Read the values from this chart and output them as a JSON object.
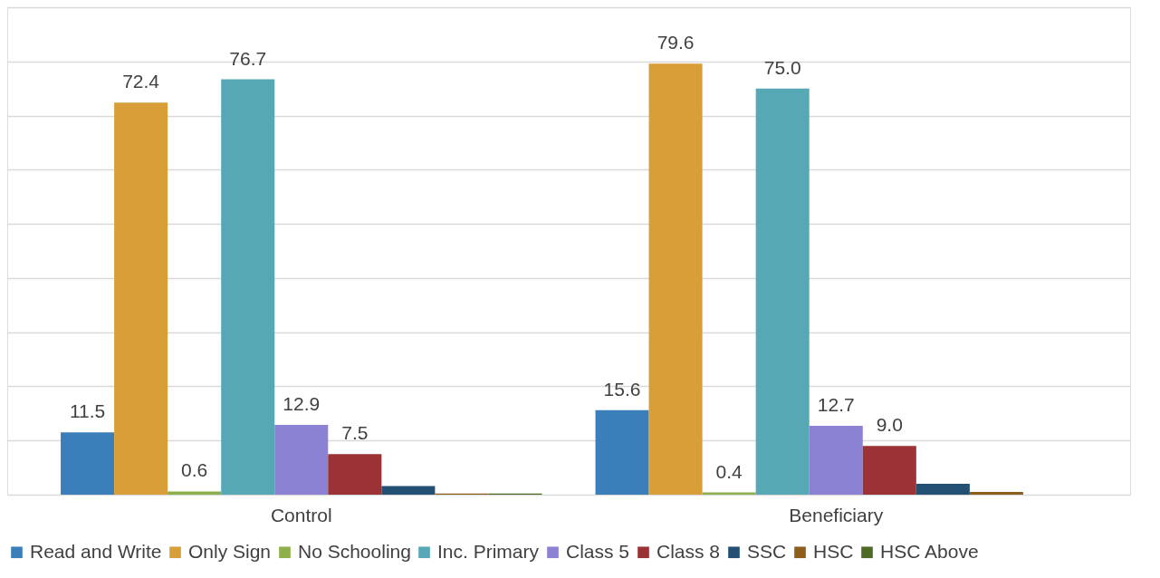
{
  "chart_data": {
    "type": "bar",
    "categories": [
      "Control",
      "Beneficiary"
    ],
    "series": [
      {
        "name": "Read and Write",
        "color": "#3a7fba",
        "values": [
          11.5,
          15.6
        ],
        "value_labels": [
          "11.5",
          "15.6"
        ]
      },
      {
        "name": "Only Sign",
        "color": "#d89f38",
        "values": [
          72.4,
          79.6
        ],
        "value_labels": [
          "72.4",
          "79.6"
        ]
      },
      {
        "name": "No Schooling",
        "color": "#8db04a",
        "values": [
          0.6,
          0.4
        ],
        "value_labels": [
          "0.6",
          "0.4"
        ]
      },
      {
        "name": "Inc. Primary",
        "color": "#57a8b5",
        "values": [
          76.7,
          75.0
        ],
        "value_labels": [
          "76.7",
          "75.0"
        ]
      },
      {
        "name": "Class 5",
        "color": "#8b82d4",
        "values": [
          12.9,
          12.7
        ],
        "value_labels": [
          "12.9",
          "12.7"
        ]
      },
      {
        "name": "Class 8",
        "color": "#9a3236",
        "values": [
          7.5,
          9.0
        ],
        "value_labels": [
          "7.5",
          "9.0"
        ]
      },
      {
        "name": "SSC",
        "color": "#234f72",
        "values": [
          1.6,
          2.0
        ],
        "value_labels": [
          null,
          null
        ]
      },
      {
        "name": "HSC",
        "color": "#8e5f1a",
        "values": [
          0.2,
          0.5
        ],
        "value_labels": [
          null,
          null
        ]
      },
      {
        "name": "HSC Above",
        "color": "#4e6b26",
        "values": [
          0.2,
          0.0
        ],
        "value_labels": [
          null,
          null
        ]
      }
    ],
    "ylim": [
      0,
      90
    ],
    "yticks": [
      {
        "value": 0,
        "label": null
      },
      {
        "value": 10,
        "label": null
      },
      {
        "value": 20,
        "label": null
      },
      {
        "value": 30,
        "label": null
      },
      {
        "value": 40,
        "label": null
      },
      {
        "value": 50,
        "label": null
      },
      {
        "value": 60,
        "label": null
      },
      {
        "value": 70,
        "label": null
      },
      {
        "value": 80,
        "label": null
      },
      {
        "value": 90,
        "label": null
      }
    ],
    "tick_labels": "x",
    "grid": "y",
    "legend": "bottom"
  }
}
